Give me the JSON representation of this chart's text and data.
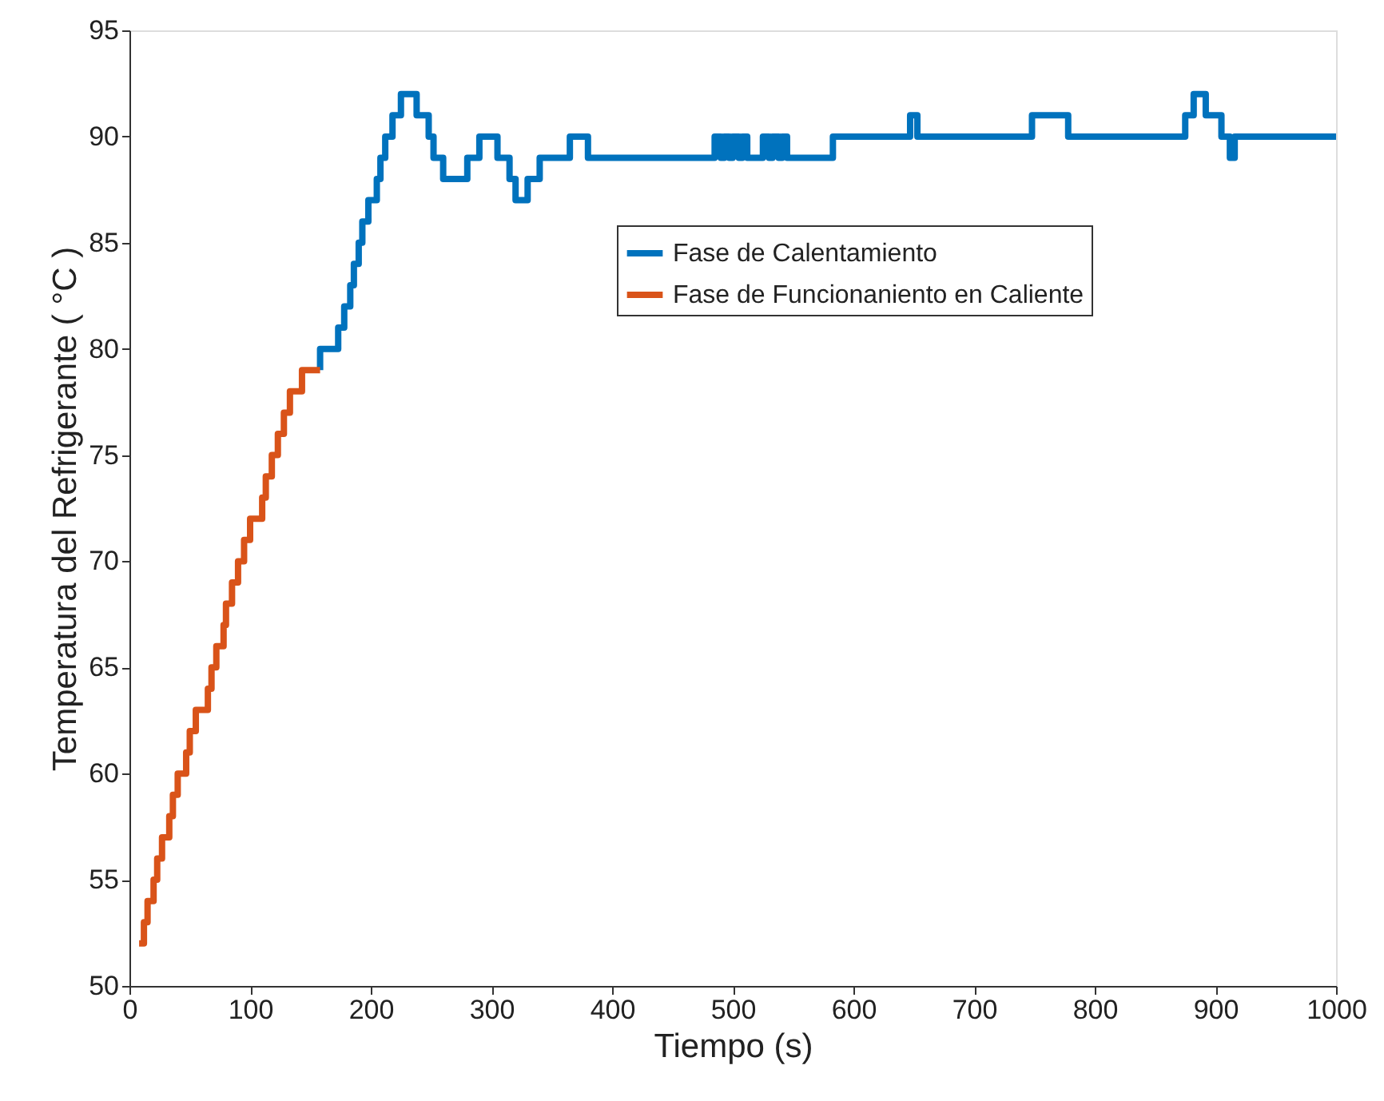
{
  "chart_data": {
    "type": "step",
    "xlabel": "Tiempo (s)",
    "ylabel": "Temperatura del Refrigerante ( °C )",
    "xlim": [
      0,
      1000
    ],
    "xticks": [
      0,
      100,
      200,
      300,
      400,
      500,
      600,
      700,
      800,
      900,
      1000
    ],
    "ylim": [
      50,
      95
    ],
    "yticks": [
      50,
      55,
      60,
      65,
      70,
      75,
      80,
      85,
      90,
      95
    ],
    "grid": false,
    "legend": "top right",
    "line_style": "solid",
    "marker": "none",
    "series": [
      {
        "name": "Fase de Calentamiento",
        "color": "#0072bd",
        "x": [
          158,
          158,
          173,
          178,
          183,
          186,
          190,
          193,
          198,
          205,
          208,
          212,
          218,
          225,
          238,
          248,
          252,
          260,
          280,
          290,
          305,
          315,
          320,
          330,
          340,
          365,
          380,
          485,
          490,
          493,
          497,
          500,
          505,
          508,
          512,
          525,
          530,
          533,
          538,
          541,
          545,
          583,
          647,
          653,
          748,
          778,
          875,
          882,
          892,
          905,
          912,
          916,
          1000
        ],
        "values": [
          79,
          80,
          81,
          82,
          83,
          84,
          85,
          86,
          87,
          88,
          89,
          90,
          91,
          92,
          91,
          90,
          89,
          88,
          89,
          90,
          89,
          88,
          87,
          88,
          89,
          90,
          89,
          90,
          89,
          90,
          89,
          90,
          89,
          90,
          89,
          90,
          89,
          90,
          89,
          90,
          89,
          90,
          91,
          90,
          91,
          90,
          91,
          92,
          91,
          90,
          89,
          90,
          90
        ]
      },
      {
        "name": "Fase de Funcionaniento en Caliente",
        "color": "#d95319",
        "x": [
          8,
          12,
          15,
          20,
          23,
          27,
          33,
          36,
          40,
          47,
          50,
          55,
          65,
          68,
          72,
          78,
          80,
          85,
          90,
          95,
          100,
          110,
          113,
          118,
          123,
          128,
          133,
          143,
          158
        ],
        "values": [
          52,
          53,
          54,
          55,
          56,
          57,
          58,
          59,
          60,
          61,
          62,
          63,
          64,
          65,
          66,
          67,
          68,
          69,
          70,
          71,
          72,
          73,
          74,
          75,
          76,
          77,
          78,
          79,
          79
        ]
      }
    ]
  }
}
